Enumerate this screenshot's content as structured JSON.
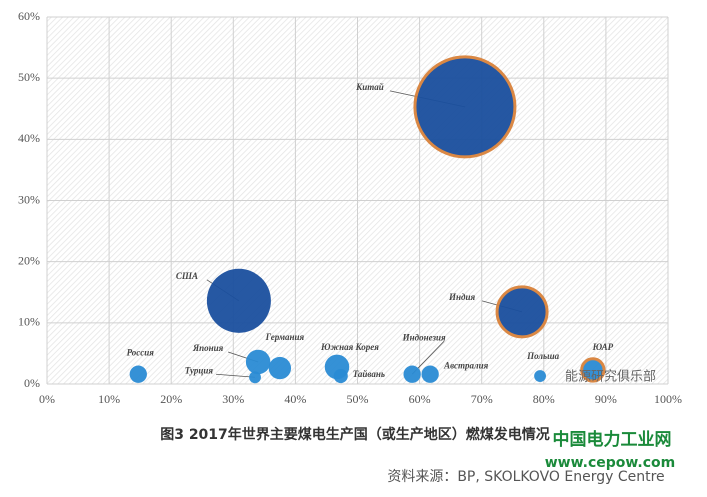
{
  "chart_data": {
    "type": "bubble",
    "caption": "图3  2017年世界主要煤电生产国（或生产地区）燃煤发电情况",
    "source": "资料来源：BP, SKOLKOVO Energy Centre",
    "watermark": "能源研究俱乐部",
    "site_name": "中国电力工业网",
    "site_url": "www.cepow.com",
    "xlim": [
      0,
      100
    ],
    "ylim": [
      0,
      60
    ],
    "xticks": [
      {
        "value": 0,
        "label": "0%"
      },
      {
        "value": 10,
        "label": "10%"
      },
      {
        "value": 20,
        "label": "20%"
      },
      {
        "value": 30,
        "label": "30%"
      },
      {
        "value": 40,
        "label": "40%"
      },
      {
        "value": 50,
        "label": "50%"
      },
      {
        "value": 60,
        "label": "60%"
      },
      {
        "value": 70,
        "label": "70%"
      },
      {
        "value": 80,
        "label": "80%"
      },
      {
        "value": 90,
        "label": "90%"
      },
      {
        "value": 100,
        "label": "100%"
      }
    ],
    "yticks": [
      {
        "value": 0,
        "label": "0%"
      },
      {
        "value": 10,
        "label": "10%"
      },
      {
        "value": 20,
        "label": "20%"
      },
      {
        "value": 30,
        "label": "30%"
      },
      {
        "value": 40,
        "label": "40%"
      },
      {
        "value": 50,
        "label": "50%"
      },
      {
        "value": 60,
        "label": "60%"
      }
    ],
    "grid": true,
    "points": {
      "labels": [
        "Россия",
        "США",
        "Япония",
        "Германия",
        "Турция",
        "Южная Корея",
        "Тайвань",
        "Индонезия",
        "Австралия",
        "Китай",
        "Индия",
        "Польша",
        "ЮАР"
      ],
      "x": [
        14.7,
        30.9,
        34.0,
        37.5,
        33.5,
        46.7,
        47.3,
        58.8,
        61.7,
        67.3,
        76.5,
        79.4,
        87.9
      ],
      "y": [
        1.6,
        13.6,
        3.6,
        2.6,
        1.1,
        2.8,
        1.3,
        1.6,
        1.6,
        45.3,
        11.8,
        1.3,
        2.3
      ],
      "sizes": [
        3,
        41,
        6,
        5,
        1.4,
        6,
        2,
        3,
        3,
        100,
        25,
        1.4,
        5
      ],
      "colors": [
        "#2a8bd4",
        "#1a4f9e",
        "#2a8bd4",
        "#2a8bd4",
        "#2a8bd4",
        "#2a8bd4",
        "#2a8bd4",
        "#2a8bd4",
        "#2a8bd4",
        "#1a4f9e",
        "#1a4f9e",
        "#2a8bd4",
        "#2a8bd4"
      ],
      "edge_colors": [
        null,
        null,
        null,
        null,
        null,
        null,
        null,
        null,
        null,
        "#d9823b",
        "#d9823b",
        null,
        "#d9823b"
      ]
    }
  }
}
